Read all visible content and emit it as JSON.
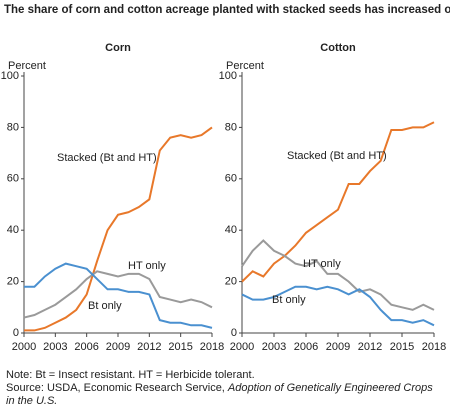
{
  "title": "The share of corn and cotton acreage planted with stacked seeds has increased over time",
  "note": "Note: Bt = Insect resistant. HT = Herbicide tolerant.",
  "source": "Source: USDA, Economic Research Service, ",
  "source_title": "Adoption of Genetically Engineered Crops in the U.S.",
  "chart_data": [
    {
      "type": "line",
      "title": "Corn",
      "y_label": "Percent",
      "x": [
        2000,
        2001,
        2002,
        2003,
        2004,
        2005,
        2006,
        2007,
        2008,
        2009,
        2010,
        2011,
        2012,
        2013,
        2014,
        2015,
        2016,
        2017,
        2018
      ],
      "xlim": [
        2000,
        2018
      ],
      "xticks": [
        2000,
        2003,
        2006,
        2009,
        2012,
        2015,
        2018
      ],
      "ylim": [
        0,
        100
      ],
      "yticks": [
        0,
        20,
        40,
        60,
        80,
        100
      ],
      "series": [
        {
          "name": "Stacked (Bt and HT)",
          "color": "#e8782a",
          "values": [
            1,
            1,
            2,
            4,
            6,
            9,
            15,
            28,
            40,
            46,
            47,
            49,
            52,
            71,
            76,
            77,
            76,
            77,
            80
          ]
        },
        {
          "name": "HT only",
          "color": "#9a9a9a",
          "values": [
            6,
            7,
            9,
            11,
            14,
            17,
            21,
            24,
            23,
            22,
            23,
            23,
            21,
            14,
            13,
            12,
            13,
            12,
            10
          ]
        },
        {
          "name": "Bt only",
          "color": "#4a90d0",
          "values": [
            18,
            18,
            22,
            25,
            27,
            26,
            25,
            21,
            17,
            17,
            16,
            16,
            15,
            5,
            4,
            4,
            3,
            3,
            2
          ]
        }
      ]
    },
    {
      "type": "line",
      "title": "Cotton",
      "y_label": "Percent",
      "x": [
        2000,
        2001,
        2002,
        2003,
        2004,
        2005,
        2006,
        2007,
        2008,
        2009,
        2010,
        2011,
        2012,
        2013,
        2014,
        2015,
        2016,
        2017,
        2018
      ],
      "xlim": [
        2000,
        2018
      ],
      "xticks": [
        2000,
        2003,
        2006,
        2009,
        2012,
        2015,
        2018
      ],
      "ylim": [
        0,
        100
      ],
      "yticks": [
        0,
        20,
        40,
        60,
        80,
        100
      ],
      "series": [
        {
          "name": "Stacked (Bt and HT)",
          "color": "#e8782a",
          "values": [
            20,
            24,
            22,
            27,
            30,
            34,
            39,
            42,
            45,
            48,
            58,
            58,
            63,
            67,
            79,
            79,
            80,
            80,
            82
          ]
        },
        {
          "name": "HT only",
          "color": "#9a9a9a",
          "values": [
            26,
            32,
            36,
            32,
            30,
            27,
            26,
            28,
            23,
            23,
            20,
            16,
            17,
            15,
            11,
            10,
            9,
            11,
            9
          ]
        },
        {
          "name": "Bt only",
          "color": "#4a90d0",
          "values": [
            15,
            13,
            13,
            14,
            16,
            18,
            18,
            17,
            18,
            17,
            15,
            17,
            14,
            9,
            5,
            5,
            4,
            5,
            3
          ]
        }
      ]
    }
  ]
}
